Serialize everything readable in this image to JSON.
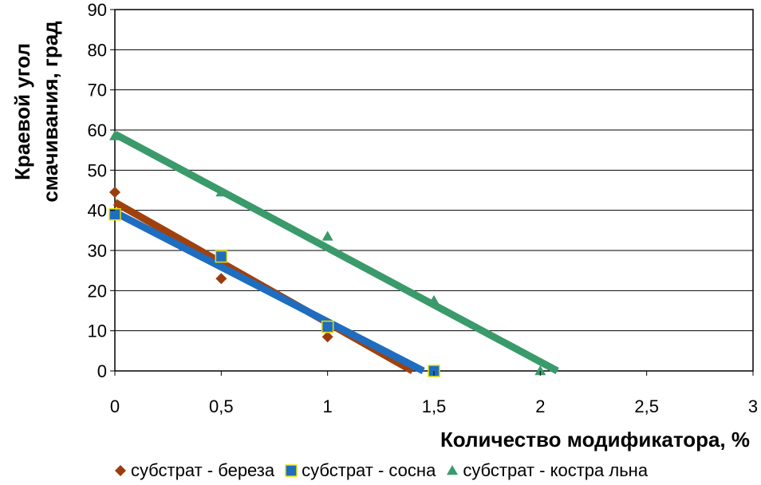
{
  "chart_data": {
    "type": "scatter",
    "title": "",
    "xlabel": "Количество модификатора, %",
    "ylabel_lines": [
      "Краевой угол",
      "смачивания, град"
    ],
    "xlim": [
      0,
      3
    ],
    "ylim": [
      0,
      90
    ],
    "x_ticks": [
      0,
      0.5,
      1,
      1.5,
      2,
      2.5,
      3
    ],
    "x_tick_labels": [
      "0",
      "0,5",
      "1",
      "1,5",
      "2",
      "2,5",
      "3"
    ],
    "y_ticks": [
      0,
      10,
      20,
      30,
      40,
      50,
      60,
      70,
      80,
      90
    ],
    "y_tick_labels": [
      "0",
      "10",
      "20",
      "30",
      "40",
      "50",
      "60",
      "70",
      "80",
      "90"
    ],
    "grid": "horizontal",
    "legend_position": "bottom",
    "series": [
      {
        "name": "субстрат - береза",
        "marker": "diamond",
        "color": "#9c3c0c",
        "trend_color": "#a0410d",
        "x": [
          0,
          0.5,
          1,
          1.5
        ],
        "y": [
          44.5,
          23,
          8.5,
          0
        ],
        "trend": [
          [
            0,
            42
          ],
          [
            1.4,
            0
          ]
        ]
      },
      {
        "name": "субстрат - сосна",
        "marker": "square",
        "color": "#1f6dbf",
        "trend_color": "#1f6dbf",
        "x": [
          0,
          0.5,
          1,
          1.5
        ],
        "y": [
          39,
          28.5,
          11,
          0
        ],
        "trend": [
          [
            0,
            39.5
          ],
          [
            1.45,
            0
          ]
        ]
      },
      {
        "name": "субстрат - костра льна",
        "marker": "triangle",
        "color": "#3a9a6a",
        "trend_color": "#3a9a6a",
        "x": [
          0,
          0.5,
          1,
          1.5,
          2
        ],
        "y": [
          58.5,
          44.5,
          33.5,
          17.5,
          0
        ],
        "trend": [
          [
            0,
            59
          ],
          [
            2.08,
            0
          ]
        ]
      }
    ]
  }
}
